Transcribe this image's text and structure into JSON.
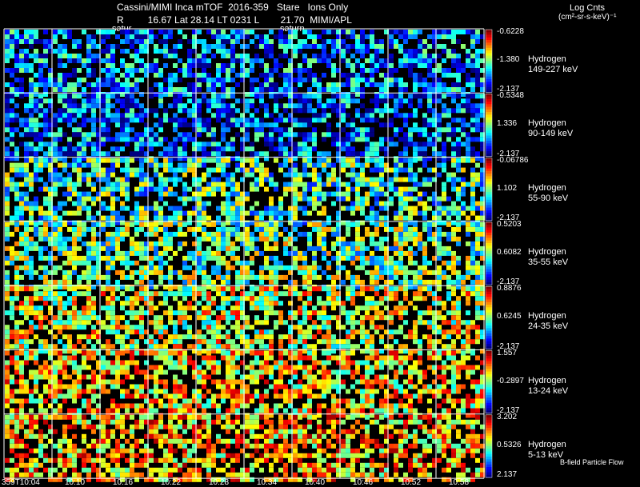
{
  "header": {
    "line1": "Cassini/MIMI Inca mTOF  2016-359   Stare   Ions Only",
    "line2": "R         16.67 Lat 28.14 LT 0231 L        21.70  MIMI/APL",
    "saturn_labels": [
      "satur",
      "saturn"
    ]
  },
  "units": {
    "title": "Log Cnts",
    "unit": "(cm²-sr-s-keV)⁻¹"
  },
  "footer_note": "B-field Particle Flow",
  "chart_data": {
    "type": "heatmap",
    "x": [
      "359T10:04",
      "10:10",
      "10:16",
      "10:22",
      "10:28",
      "10:34",
      "10:40",
      "10:46",
      "10:52",
      "10:58"
    ],
    "rows": [
      {
        "species": "Hydrogen",
        "energy": "149-227 keV",
        "cbar_top": "-0.6228",
        "cbar_mid": "-1.380",
        "cbar_bottom": "-2.137",
        "level": 0.25
      },
      {
        "species": "Hydrogen",
        "energy": "90-149 keV",
        "cbar_top": "-0.5348",
        "cbar_mid": "1.336",
        "cbar_bottom": "-2.137",
        "level": 0.22
      },
      {
        "species": "Hydrogen",
        "energy": "55-90 keV",
        "cbar_top": "-0.06786",
        "cbar_mid": "1.102",
        "cbar_bottom": "-2.137",
        "level": 0.42
      },
      {
        "species": "Hydrogen",
        "energy": "35-55 keV",
        "cbar_top": "0.5203",
        "cbar_mid": "0.6082",
        "cbar_bottom": "-2.137",
        "level": 0.48
      },
      {
        "species": "Hydrogen",
        "energy": "24-35 keV",
        "cbar_top": "0.8876",
        "cbar_mid": "0.6245",
        "cbar_bottom": "-2.137",
        "level": 0.6
      },
      {
        "species": "Hydrogen",
        "energy": "13-24 keV",
        "cbar_top": "1.557",
        "cbar_mid": "-0.2897",
        "cbar_bottom": "-2.137",
        "level": 0.66
      },
      {
        "species": "Hydrogen",
        "energy": "5-13 keV",
        "cbar_top": "3.202",
        "cbar_mid": "0.5326",
        "cbar_bottom": "2.137",
        "level": 0.7
      }
    ]
  }
}
